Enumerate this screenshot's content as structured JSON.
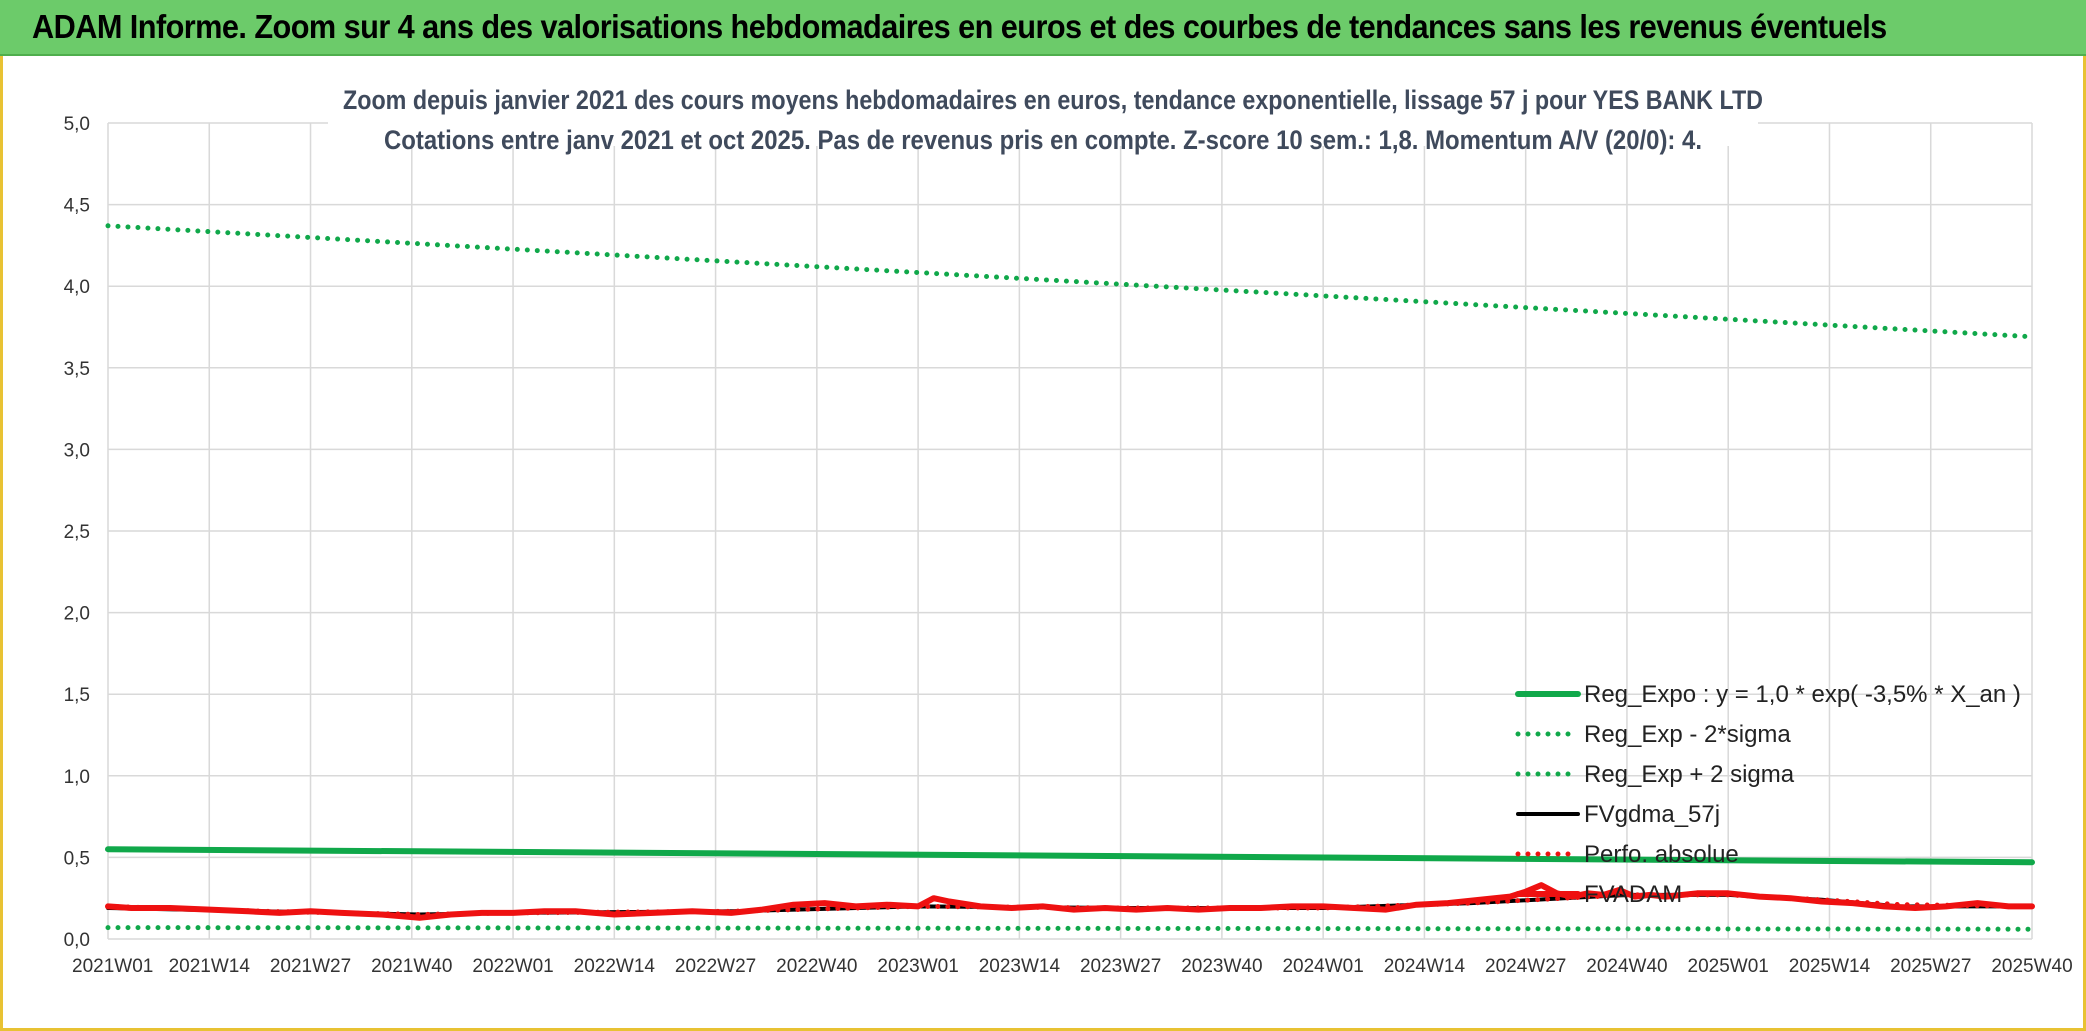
{
  "header": {
    "title": "ADAM Informe. Zoom sur 4 ans des valorisations hebdomadaires en euros et des courbes de tendances sans les revenus éventuels"
  },
  "colors": {
    "header_bg": "#6ccb6a",
    "frame": "#e8c233",
    "green": "#10a84a",
    "black": "#000000",
    "red": "#ee1111",
    "grid": "#d9d9d9"
  },
  "chart_data": {
    "type": "line",
    "title_line1": "Zoom depuis janvier 2021 des cours moyens hebdomadaires en euros, tendance exponentielle, lissage 57 j pour YES BANK LTD",
    "title_line2": "Cotations entre janv 2021 et oct 2025. Pas de revenus pris en compte. Z-score 10 sem.: 1,8. Momentum A/V (20/0): 4.",
    "ylim": [
      0,
      5
    ],
    "yticks": [
      "0,0",
      "0,5",
      "1,0",
      "1,5",
      "2,0",
      "2,5",
      "3,0",
      "3,5",
      "4,0",
      "4,5",
      "5,0"
    ],
    "xticks": [
      "2021W01",
      "2021W14",
      "2021W27",
      "2021W40",
      "2022W01",
      "2022W14",
      "2022W27",
      "2022W40",
      "2023W01",
      "2023W14",
      "2023W27",
      "2023W40",
      "2024W01",
      "2024W14",
      "2024W27",
      "2024W40",
      "2025W01",
      "2025W14",
      "2025W27",
      "2025W40"
    ],
    "n_weeks": 248,
    "series": [
      {
        "name": "Reg_Expo : y = 1,0 * exp( -3,5% *  X_an )",
        "style": "solid",
        "color": "#10a84a",
        "x": [
          0,
          247
        ],
        "values": [
          0.55,
          0.47
        ]
      },
      {
        "name": "Reg_Exp - 2*sigma",
        "style": "dotted",
        "color": "#10a84a",
        "x": [
          0,
          247
        ],
        "values": [
          0.07,
          0.06
        ]
      },
      {
        "name": "Reg_Exp + 2 sigma",
        "style": "dotted",
        "color": "#10a84a",
        "x": [
          0,
          247
        ],
        "values": [
          4.37,
          3.69
        ]
      },
      {
        "name": "FVgdma_57j",
        "style": "solid",
        "color": "#000000",
        "x": [
          0,
          20,
          40,
          52,
          80,
          104,
          130,
          156,
          175,
          195,
          208,
          220,
          230,
          247
        ],
        "values": [
          0.19,
          0.17,
          0.15,
          0.16,
          0.17,
          0.2,
          0.19,
          0.19,
          0.22,
          0.27,
          0.27,
          0.24,
          0.2,
          0.2
        ]
      },
      {
        "name": "Perfo. absolue",
        "style": "dotted",
        "color": "#ee1111",
        "x": [
          0,
          20,
          40,
          52,
          80,
          104,
          130,
          156,
          175,
          195,
          208,
          220,
          230,
          247
        ],
        "values": [
          0.2,
          0.17,
          0.15,
          0.16,
          0.17,
          0.2,
          0.19,
          0.19,
          0.22,
          0.27,
          0.27,
          0.24,
          0.21,
          0.2
        ]
      },
      {
        "name": "FVADAM",
        "style": "solid",
        "color": "#ee1111",
        "x": [
          0,
          3,
          8,
          13,
          18,
          22,
          26,
          30,
          35,
          40,
          44,
          48,
          52,
          56,
          60,
          65,
          70,
          75,
          80,
          84,
          88,
          92,
          96,
          100,
          104,
          106,
          108,
          112,
          116,
          120,
          124,
          128,
          132,
          136,
          140,
          144,
          148,
          152,
          156,
          160,
          164,
          168,
          172,
          176,
          180,
          182,
          184,
          186,
          188,
          190,
          192,
          194,
          196,
          198,
          200,
          204,
          208,
          212,
          216,
          220,
          224,
          228,
          232,
          236,
          240,
          244,
          247
        ],
        "values": [
          0.2,
          0.19,
          0.19,
          0.18,
          0.17,
          0.16,
          0.17,
          0.16,
          0.15,
          0.13,
          0.15,
          0.16,
          0.16,
          0.17,
          0.17,
          0.15,
          0.16,
          0.17,
          0.16,
          0.18,
          0.21,
          0.22,
          0.2,
          0.21,
          0.2,
          0.25,
          0.23,
          0.2,
          0.19,
          0.2,
          0.18,
          0.19,
          0.18,
          0.19,
          0.18,
          0.19,
          0.19,
          0.2,
          0.2,
          0.19,
          0.18,
          0.21,
          0.22,
          0.24,
          0.26,
          0.29,
          0.33,
          0.28,
          0.26,
          0.28,
          0.27,
          0.3,
          0.26,
          0.27,
          0.26,
          0.28,
          0.28,
          0.26,
          0.25,
          0.23,
          0.22,
          0.2,
          0.19,
          0.2,
          0.22,
          0.2,
          0.2
        ]
      }
    ]
  }
}
